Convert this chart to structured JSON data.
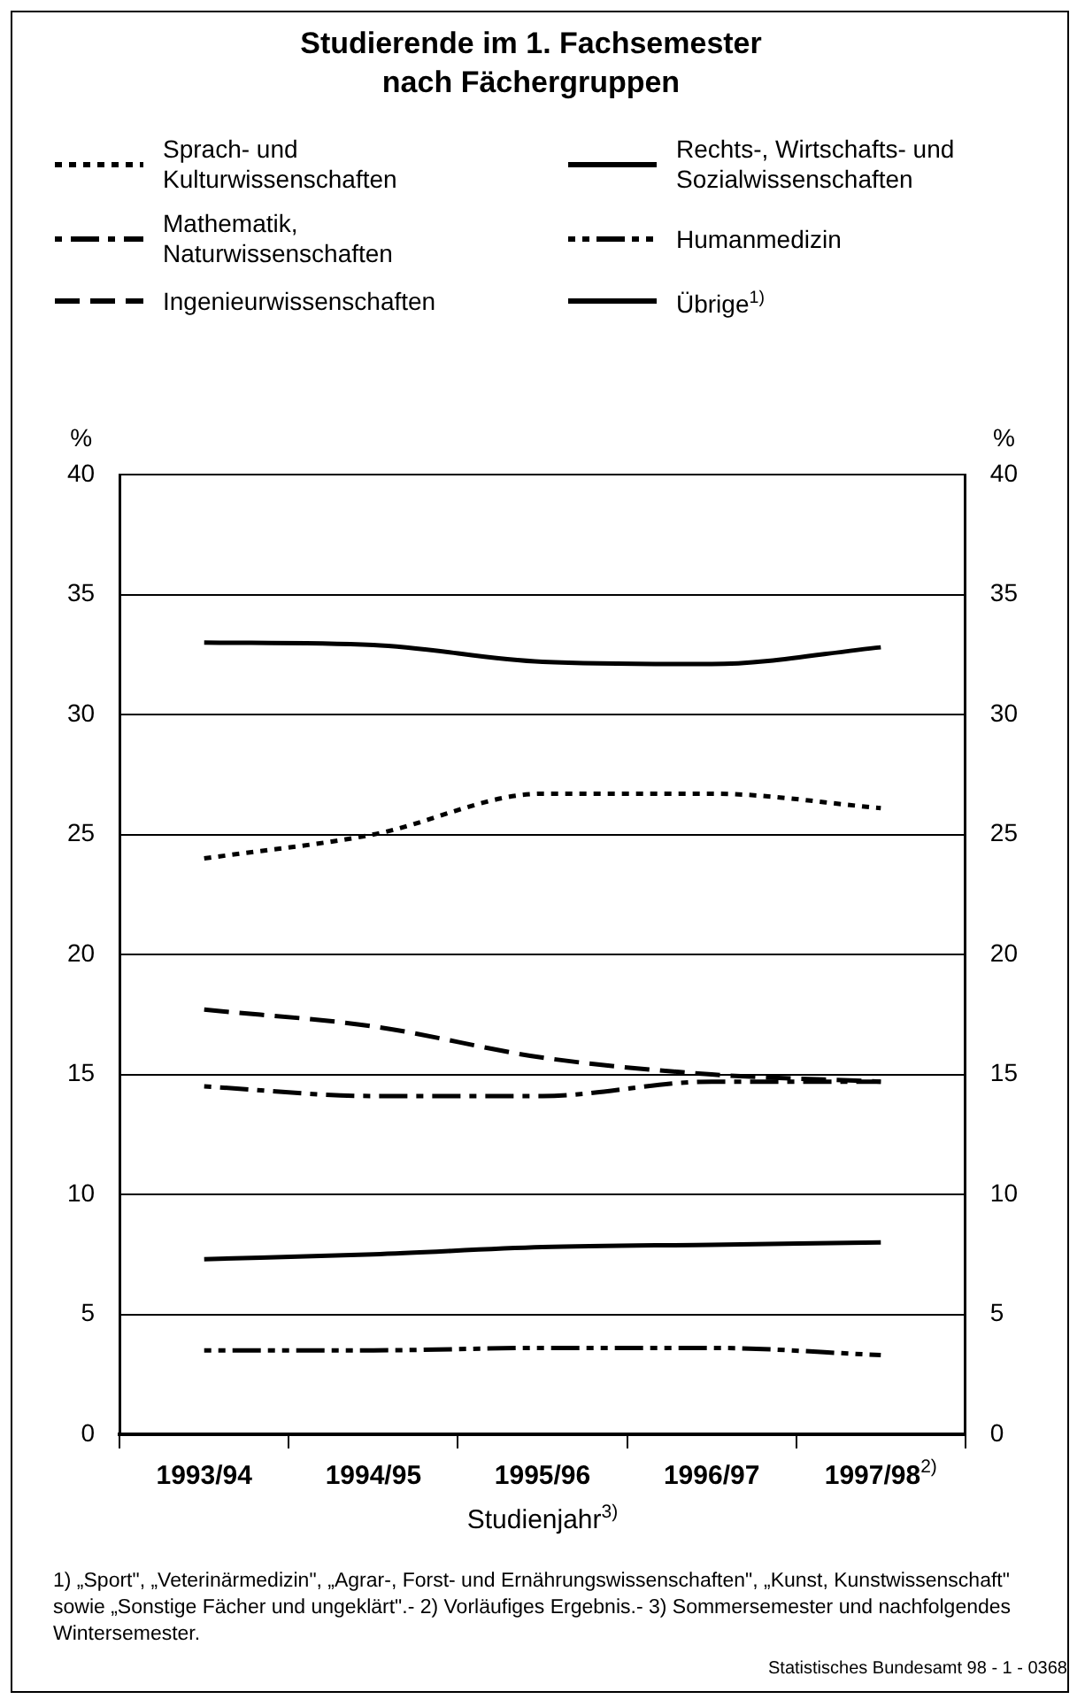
{
  "chart_data": {
    "type": "line",
    "title": "Studierende im 1. Fachsemester nach Fächergruppen",
    "categories": [
      "1993/94",
      "1994/95",
      "1995/96",
      "1996/97",
      "1997/98$^{2)}$"
    ],
    "xlabel": "Studienjahr$^{3)}$",
    "ylabel": "%",
    "y2label": "%",
    "ylim": [
      0,
      40
    ],
    "yticks": [
      0,
      5,
      10,
      15,
      20,
      25,
      30,
      35,
      40
    ],
    "y2lim": [
      0,
      40
    ],
    "y2ticks": [
      0,
      5,
      10,
      15,
      20,
      25,
      30,
      35,
      40
    ],
    "grid": "y",
    "legend": "top",
    "marker": "none",
    "series": [
      {
        "name": "Sprach- und Kulturwissenschaften",
        "color": "#000000",
        "line_style": "dotted",
        "values": [
          24.0,
          25.0,
          26.7,
          26.7,
          26.1
        ]
      },
      {
        "name": "Rechts-, Wirtschafts- und Sozialwissenschaften",
        "color": "#000000",
        "line_style": "solid",
        "values": [
          33.0,
          32.9,
          32.2,
          32.1,
          32.8
        ]
      },
      {
        "name": "Mathematik, Naturwissenschaften",
        "color": "#000000",
        "line_style": "dashdot",
        "values": [
          14.5,
          14.1,
          14.1,
          14.7,
          14.7
        ]
      },
      {
        "name": "Humanmedizin",
        "color": "#000000",
        "line_style": "dashdotdot",
        "values": [
          3.5,
          3.5,
          3.6,
          3.6,
          3.3
        ]
      },
      {
        "name": "Ingenieurwissenschaften",
        "color": "#000000",
        "line_style": "dashed",
        "values": [
          17.7,
          17.0,
          15.7,
          15.0,
          14.7
        ]
      },
      {
        "name": "Übrige$^{1)}$",
        "color": "#000000",
        "line_style": "solid",
        "values": [
          7.3,
          7.5,
          7.8,
          7.9,
          8.0
        ]
      }
    ],
    "annotations": [
      "1) „Sport\", „Veterinärmedizin\", „Agrar-, Forst- und Ernährungswissenschaften\", „Kunst, Kunstwissenschaft\" sowie „Sonstige Fächer und ungeklärt\".- 2) Vorläufiges Ergebnis.- 3) Sommersemester und nachfolgendes Wintersemester.",
      "Statistisches Bundesamt 98 - 1 - 0368"
    ]
  }
}
